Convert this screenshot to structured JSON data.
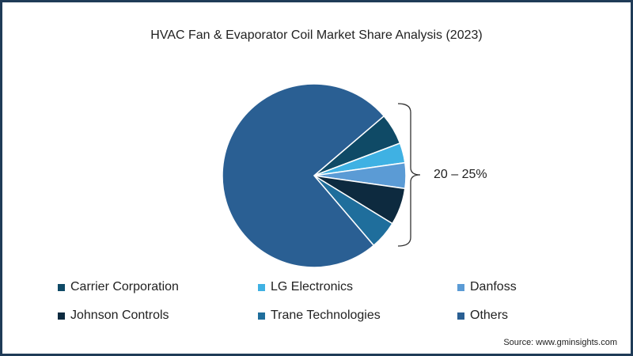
{
  "chart_data": {
    "type": "pie",
    "title": "HVAC Fan & Evaporator Coil Market Share Analysis (2023)",
    "categories": [
      "Carrier Corporation",
      "LG Electronics",
      "Danfoss",
      "Johnson Controls",
      "Trane Technologies",
      "Others"
    ],
    "values": [
      5.5,
      3.5,
      4.5,
      6.5,
      5.0,
      75.0
    ],
    "slice_order": [
      "Carrier Corporation",
      "LG Electronics",
      "Danfoss",
      "Johnson Controls",
      "Trane Technologies",
      "Others"
    ],
    "colors": [
      "#0f4a66",
      "#3fb1e3",
      "#5b9bd5",
      "#0d2a3f",
      "#1f6e9c",
      "#2a5f93"
    ],
    "annotation": "20 – 25%",
    "legend_position": "bottom"
  },
  "source": "Source: www.gminsights.com"
}
